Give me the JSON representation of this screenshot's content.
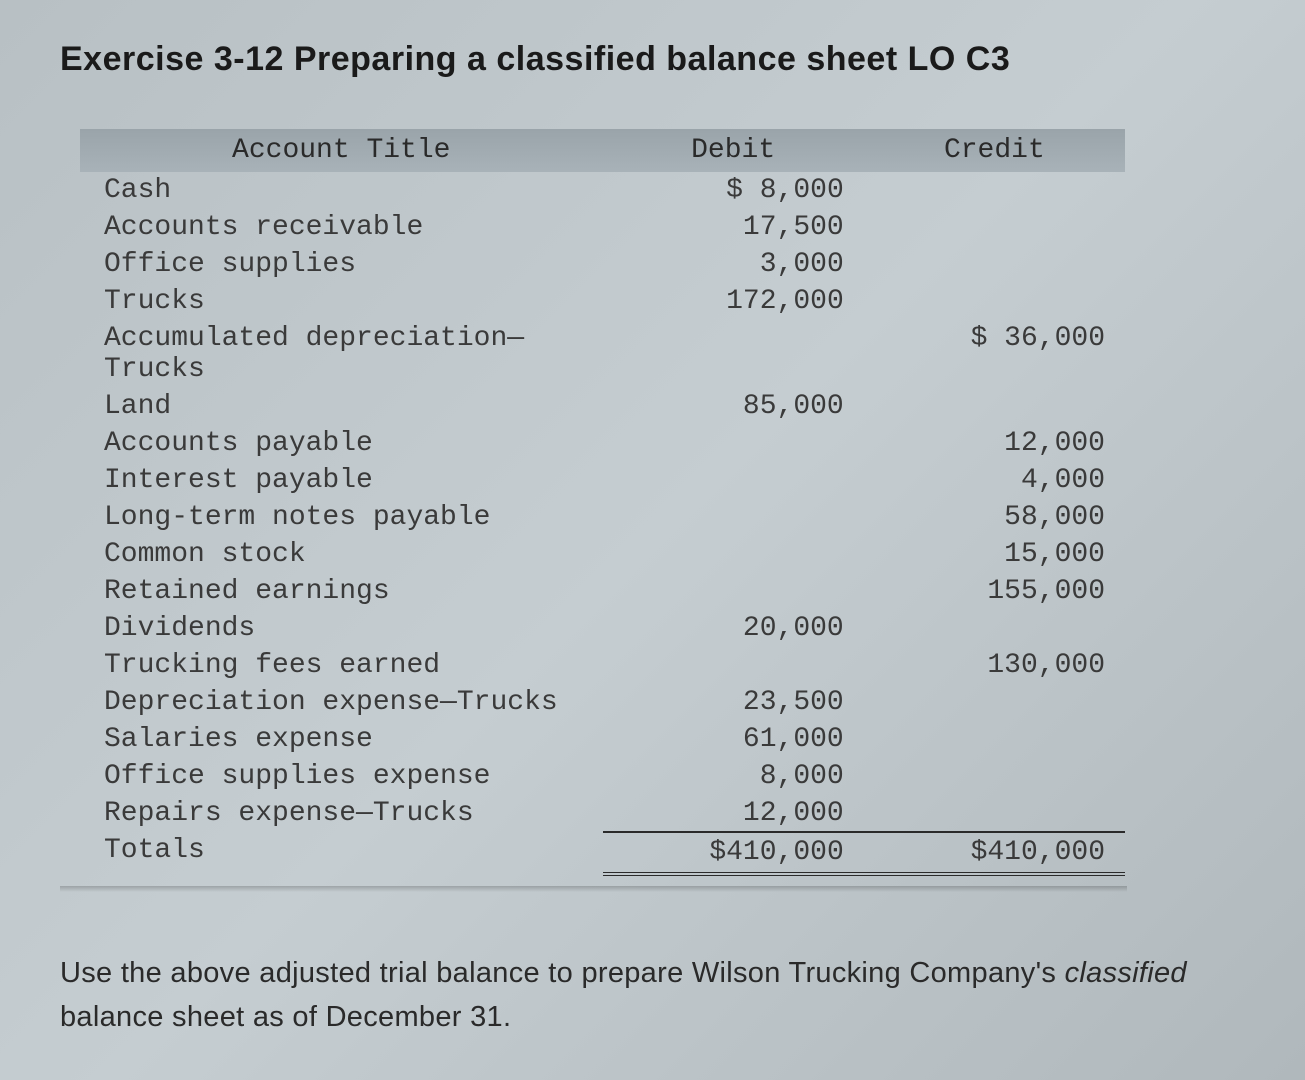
{
  "title": "Exercise 3-12 Preparing a classified balance sheet LO C3",
  "table": {
    "headers": {
      "account": "Account Title",
      "debit": "Debit",
      "credit": "Credit"
    },
    "rows": [
      {
        "title": "Cash",
        "debit": "$  8,000",
        "credit": ""
      },
      {
        "title": "Accounts receivable",
        "debit": "17,500",
        "credit": ""
      },
      {
        "title": "Office supplies",
        "debit": "3,000",
        "credit": ""
      },
      {
        "title": "Trucks",
        "debit": "172,000",
        "credit": ""
      },
      {
        "title": "Accumulated depreciation—Trucks",
        "debit": "",
        "credit": "$ 36,000"
      },
      {
        "title": "Land",
        "debit": "85,000",
        "credit": ""
      },
      {
        "title": "Accounts payable",
        "debit": "",
        "credit": "12,000"
      },
      {
        "title": "Interest payable",
        "debit": "",
        "credit": "4,000"
      },
      {
        "title": "Long-term notes payable",
        "debit": "",
        "credit": "58,000"
      },
      {
        "title": "Common stock",
        "debit": "",
        "credit": "15,000"
      },
      {
        "title": "Retained earnings",
        "debit": "",
        "credit": "155,000"
      },
      {
        "title": "Dividends",
        "debit": "20,000",
        "credit": ""
      },
      {
        "title": "Trucking fees earned",
        "debit": "",
        "credit": "130,000"
      },
      {
        "title": "Depreciation expense—Trucks",
        "debit": "23,500",
        "credit": ""
      },
      {
        "title": "Salaries expense",
        "debit": "61,000",
        "credit": ""
      },
      {
        "title": "Office supplies expense",
        "debit": "8,000",
        "credit": ""
      },
      {
        "title": "Repairs expense—Trucks",
        "debit": "12,000",
        "credit": ""
      }
    ],
    "totals": {
      "label": "Totals",
      "debit": "$410,000",
      "credit": "$410,000"
    }
  },
  "instruction": {
    "part1": "Use the above adjusted trial balance to prepare Wilson Trucking Company's ",
    "italic": "classified",
    "part2": " balance sheet as of December 31."
  },
  "styles": {
    "body_bg": "#bcc4c8",
    "header_bg": "#a0aab0",
    "text_color": "#2a2a2a",
    "mono_font": "Courier New",
    "sans_font": "Arial",
    "title_fontsize": 34,
    "table_fontsize": 28,
    "instruction_fontsize": 29
  }
}
